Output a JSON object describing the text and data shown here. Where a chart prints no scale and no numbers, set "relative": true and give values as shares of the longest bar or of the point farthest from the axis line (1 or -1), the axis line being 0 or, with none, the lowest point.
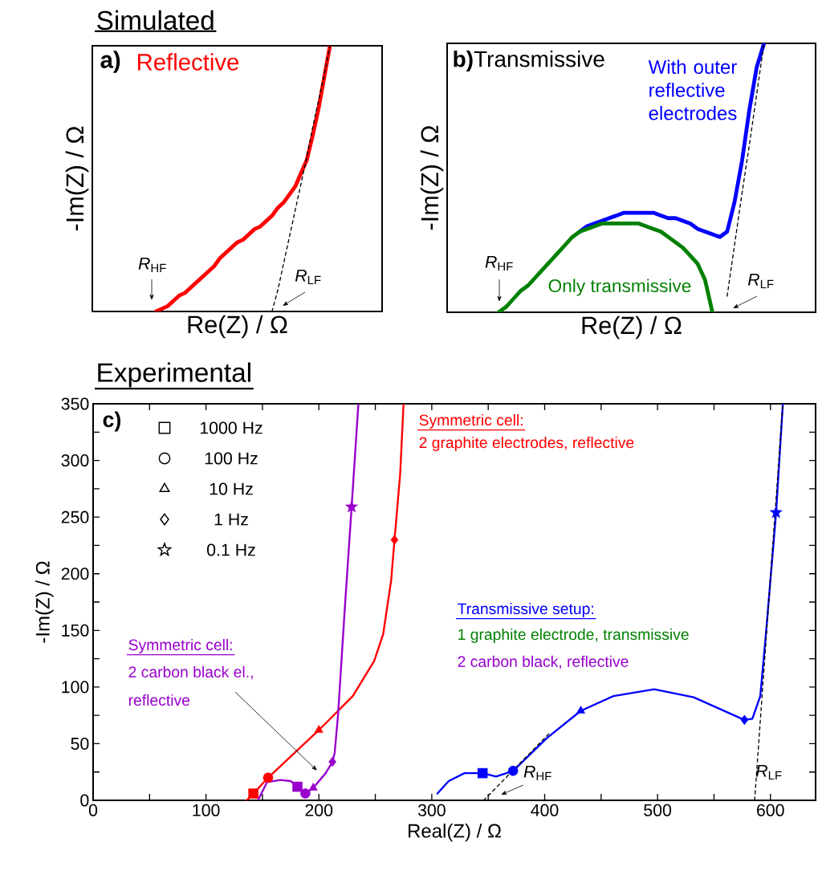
{
  "chart_data": [
    {
      "type": "line",
      "title": "Simulated",
      "xlabel": "Re(Z) / Ω",
      "ylabel": "-Im(Z) / Ω",
      "relative": true,
      "annotations": [
        "**a)**",
        "*R*$_{HF}$",
        "*R*$_{LF}$"
      ],
      "categories": [
        null,
        null,
        null,
        null,
        null,
        null,
        null,
        null,
        null,
        null,
        null,
        null,
        null,
        null,
        null,
        null,
        null,
        null,
        null,
        null,
        null,
        null,
        null,
        null,
        null,
        null,
        null,
        null,
        null,
        null,
        null,
        null,
        null,
        null,
        null,
        null,
        null,
        null,
        null,
        null,
        null,
        null,
        null,
        null,
        null,
        null,
        null,
        null,
        null,
        null,
        null
      ],
      "series": [
        {
          "name": "Reflective",
          "color": "#ff0000",
          "values": [
            null,
            null,
            null,
            null,
            null,
            null,
            null,
            null,
            null,
            null,
            null,
            0,
            0.01,
            0.02,
            0.04,
            0.06,
            0.07,
            0.09,
            0.11,
            0.13,
            0.15,
            0.17,
            0.2,
            0.22,
            0.24,
            0.26,
            0.27,
            0.29,
            0.31,
            0.32,
            0.34,
            0.36,
            0.39,
            0.41,
            0.44,
            0.47,
            0.52,
            0.57,
            0.66,
            0.76,
            0.88,
            1,
            null,
            null,
            null,
            null,
            null,
            null,
            null,
            null,
            null
          ]
        },
        {
          "color": "#000000",
          "line_style": "dashed",
          "values": [
            null,
            null,
            null,
            null,
            null,
            null,
            null,
            null,
            null,
            null,
            null,
            null,
            null,
            null,
            null,
            null,
            null,
            null,
            null,
            null,
            null,
            null,
            null,
            null,
            null,
            null,
            null,
            null,
            null,
            null,
            null,
            0,
            0.08,
            0.18,
            0.28,
            0.38,
            0.48,
            0.58,
            0.69,
            0.79,
            0.89,
            1,
            null,
            null,
            null,
            null,
            null,
            null,
            null,
            null,
            null
          ]
        }
      ]
    },
    {
      "type": "line",
      "xlabel": "Re(Z) / Ω",
      "ylabel": "-Im(Z) / Ω",
      "relative": true,
      "annotations": [
        "**b)**Transmissive",
        "*R*$_{HF}$",
        "*R*$_{LF}$"
      ],
      "categories": [
        null,
        null,
        null,
        null,
        null,
        null,
        null,
        null,
        null,
        null,
        null,
        null,
        null,
        null,
        null,
        null,
        null,
        null,
        null,
        null,
        null,
        null,
        null,
        null,
        null,
        null,
        null,
        null,
        null,
        null,
        null,
        null,
        null,
        null,
        null,
        null,
        null,
        null,
        null,
        null,
        null,
        null,
        null,
        null,
        null,
        null,
        null,
        null,
        null,
        null,
        null
      ],
      "series": [
        {
          "name": "With outer reflective electrodes",
          "color": "#0000ff",
          "values": [
            null,
            null,
            null,
            null,
            null,
            null,
            null,
            null,
            null,
            null,
            null,
            null,
            null,
            null,
            null,
            null,
            null,
            null,
            0.3,
            0.32,
            0.33,
            0.34,
            0.35,
            0.36,
            0.37,
            0.37,
            0.37,
            0.37,
            0.37,
            0.36,
            0.35,
            0.35,
            0.34,
            0.33,
            0.31,
            0.3,
            0.29,
            0.28,
            0.3,
            0.41,
            0.56,
            0.75,
            0.91,
            1,
            null,
            null,
            null,
            null,
            null,
            null,
            null
          ]
        },
        {
          "name": "Only transmissive",
          "color": "#008000",
          "values": [
            null,
            null,
            null,
            null,
            null,
            null,
            null,
            0,
            0.02,
            0.05,
            0.08,
            0.1,
            0.13,
            0.16,
            0.19,
            0.22,
            0.25,
            0.28,
            0.3,
            0.31,
            0.32,
            0.33,
            0.33,
            0.33,
            0.33,
            0.33,
            0.33,
            0.32,
            0.31,
            0.3,
            0.28,
            0.26,
            0.24,
            0.21,
            0.18,
            0.12,
            0,
            null,
            null,
            null,
            null,
            null,
            null,
            null,
            null,
            null,
            null,
            null,
            null,
            null,
            null
          ]
        },
        {
          "color": "#000000",
          "line_style": "dashed",
          "values": [
            null,
            null,
            null,
            null,
            null,
            null,
            null,
            null,
            null,
            null,
            null,
            null,
            null,
            null,
            null,
            null,
            null,
            null,
            null,
            null,
            null,
            null,
            null,
            null,
            null,
            null,
            null,
            null,
            null,
            null,
            null,
            null,
            null,
            null,
            null,
            null,
            null,
            null,
            0.06,
            0.25,
            0.44,
            0.62,
            0.81,
            1,
            null,
            null,
            null,
            null,
            null,
            null,
            null
          ]
        }
      ]
    },
    {
      "type": "line",
      "title": "Experimental",
      "xlabel": "Real(Z) / Ω",
      "ylabel": "-Im(Z) / Ω",
      "xlim": [
        0,
        640
      ],
      "ylim": [
        0,
        350
      ],
      "xticks": [
        0,
        {
          "value": 50,
          "label": null
        },
        100,
        {
          "value": 150,
          "label": null
        },
        200,
        {
          "value": 250,
          "label": null
        },
        300,
        {
          "value": 350,
          "label": null
        },
        400,
        {
          "value": 450,
          "label": null
        },
        500,
        {
          "value": 550,
          "label": null
        },
        600
      ],
      "yticks": [
        0,
        {
          "value": 25,
          "label": null
        },
        50,
        {
          "value": 75,
          "label": null
        },
        100,
        {
          "value": 125,
          "label": null
        },
        150,
        {
          "value": 175,
          "label": null
        },
        200,
        {
          "value": 225,
          "label": null
        },
        250,
        {
          "value": 275,
          "label": null
        },
        300,
        {
          "value": 325,
          "label": null
        },
        350
      ],
      "annotations": [
        "**c)**",
        "Symmetric cell:",
        "2 graphite electrodes, reflective",
        "Transmissive setup:",
        "1 graphite electrode, transmissive",
        "2 carbon black, reflective",
        "Symmetric cell:",
        "2 carbon black el.,",
        "reflective",
        "*R*$_{HF}$",
        "*R*$_{LF}$",
        "1000 Hz",
        "100 Hz",
        "10 Hz",
        "1 Hz",
        "0.1 Hz"
      ],
      "series": [
        {
          "color": "#ff0000",
          "x": [
            136,
            142,
            155,
            200,
            230,
            249,
            257,
            264,
            267,
            272,
            275
          ],
          "values": [
            0,
            6,
            20,
            62,
            92,
            123,
            147,
            194,
            230,
            288,
            350
          ]
        },
        {
          "color": "#9900cc",
          "x": [
            146,
            154,
            166,
            175,
            181,
            188,
            195,
            206,
            212,
            214,
            217,
            223,
            229,
            235
          ],
          "values": [
            0,
            16,
            18,
            17,
            12,
            6,
            11,
            24,
            34,
            42,
            76,
            170,
            259,
            350
          ]
        },
        {
          "color": "#0000ff",
          "x": [
            305,
            315,
            329,
            345,
            357,
            372,
            402,
            432,
            461,
            497,
            532,
            577,
            584,
            591,
            596,
            605,
            611
          ],
          "values": [
            6,
            17,
            24,
            24,
            21,
            26,
            55,
            79,
            92,
            98,
            91,
            71,
            72,
            92,
            147,
            254,
            350
          ]
        },
        {
          "color": "#000000",
          "line_style": "dashed",
          "x": [
            346,
            405
          ],
          "values": [
            0,
            60
          ]
        },
        {
          "color": "#000000",
          "line_style": "dashed",
          "x": [
            586,
            611
          ],
          "values": [
            0,
            350
          ]
        },
        {
          "type": "scatter",
          "marker": "square",
          "x": [
            142,
            181,
            345
          ],
          "values": [
            6,
            12,
            24
          ],
          "colors": [
            "#ff0000",
            "#9900cc",
            "#0000ff"
          ]
        },
        {
          "type": "scatter",
          "marker": "circle",
          "x": [
            155,
            188,
            372
          ],
          "values": [
            20,
            6,
            26
          ],
          "colors": [
            "#ff0000",
            "#9900cc",
            "#0000ff"
          ]
        },
        {
          "type": "scatter",
          "marker": "triangle",
          "x": [
            200,
            195,
            432
          ],
          "values": [
            62,
            11,
            79
          ],
          "colors": [
            "#ff0000",
            "#9900cc",
            "#0000ff"
          ]
        },
        {
          "type": "scatter",
          "marker": "diamond",
          "x": [
            267,
            212,
            577
          ],
          "values": [
            230,
            34,
            71
          ],
          "colors": [
            "#ff0000",
            "#9900cc",
            "#0000ff"
          ]
        },
        {
          "type": "scatter",
          "marker": "star",
          "x": [
            229,
            605
          ],
          "values": [
            259,
            254
          ],
          "colors": [
            "#9900cc",
            "#0000ff"
          ]
        }
      ]
    }
  ]
}
